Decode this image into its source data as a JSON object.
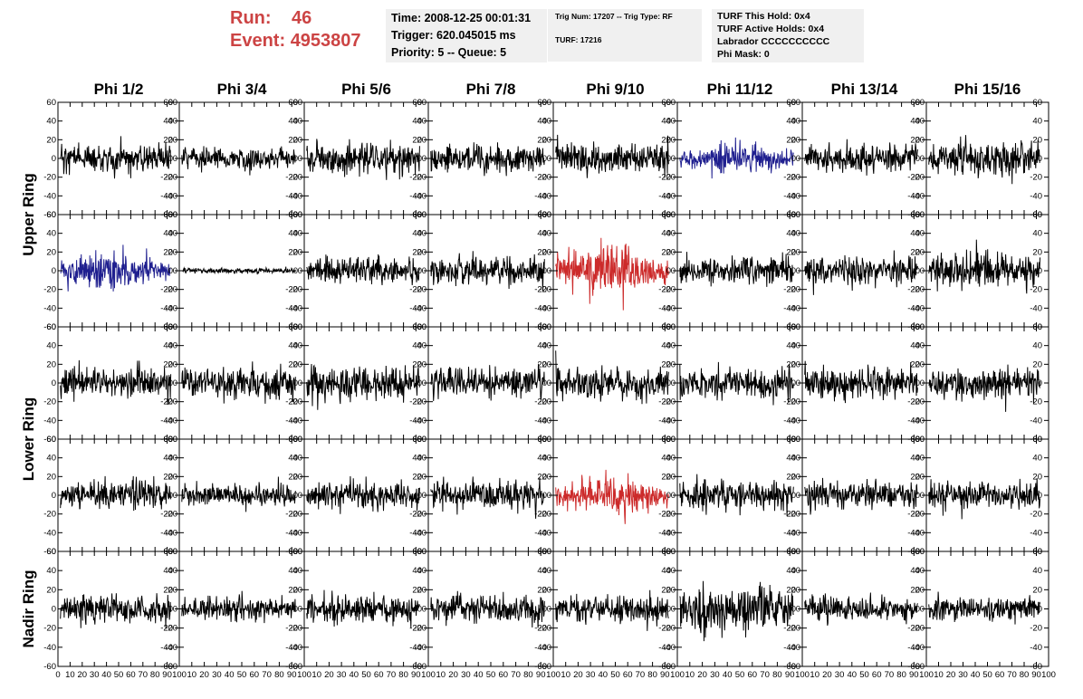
{
  "header": {
    "run_label": "Run:",
    "run_value": "46",
    "event_label": "Event:",
    "event_value": "4953807",
    "box1": {
      "time": "Time: 2008-12-25 00:01:31",
      "trigger": "Trigger: 620.045015 ms",
      "priority": "Priority: 5 -- Queue: 5"
    },
    "box2": {
      "trig": "Trig Num: 17207 -- Trig Type: RF",
      "turf": "TURF: 17216"
    },
    "box3": {
      "this_hold": "TURF This Hold: 0x4",
      "active_holds": "TURF Active Holds: 0x4",
      "labrador": "Labrador CCCCCCCCCC",
      "phi_mask": "Phi Mask: 0"
    }
  },
  "colors": {
    "normal": "#000000",
    "blue": "#1f1f8f",
    "red": "#cc2a2a",
    "title": "#cc4444"
  },
  "chart_data": {
    "type": "line",
    "columns": [
      "Phi 1/2",
      "Phi 3/4",
      "Phi 5/6",
      "Phi 7/8",
      "Phi 9/10",
      "Phi 11/12",
      "Phi 13/14",
      "Phi 15/16"
    ],
    "row_groups": [
      {
        "label": "Upper Ring",
        "rows": [
          0,
          1
        ]
      },
      {
        "label": "Lower Ring",
        "rows": [
          2,
          3
        ]
      },
      {
        "label": "Nadir Ring",
        "rows": [
          4
        ]
      }
    ],
    "ylim": [
      -60,
      60
    ],
    "xlim": [
      0,
      100
    ],
    "yticks": [
      -60,
      -40,
      -20,
      0,
      20,
      40,
      60
    ],
    "xticks": [
      0,
      10,
      20,
      30,
      40,
      50,
      60,
      70,
      80,
      90,
      100
    ],
    "x_tick_labels_first": [
      "0",
      "10",
      "20",
      "30",
      "40",
      "50",
      "60",
      "70",
      "80",
      "90",
      "100"
    ],
    "x_tick_labels_other": [
      "10",
      "20",
      "30",
      "40",
      "50",
      "60",
      "70",
      "80",
      "90",
      "100"
    ],
    "y_tick_labels": [
      "60",
      "40",
      "20",
      "0",
      "-20",
      "-40",
      "-60"
    ],
    "panels": [
      [
        {
          "color": "normal",
          "amp": 13,
          "seed": 11
        },
        {
          "color": "normal",
          "amp": 10,
          "seed": 12
        },
        {
          "color": "normal",
          "amp": 14,
          "seed": 13
        },
        {
          "color": "normal",
          "amp": 13,
          "seed": 14
        },
        {
          "color": "normal",
          "amp": 15,
          "seed": 15
        },
        {
          "color": "blue",
          "amp": 14,
          "seed": 16
        },
        {
          "color": "normal",
          "amp": 14,
          "seed": 17
        },
        {
          "color": "normal",
          "amp": 15,
          "seed": 18
        }
      ],
      [
        {
          "color": "blue",
          "amp": 17,
          "seed": 21
        },
        {
          "color": "normal",
          "amp": 2.5,
          "seed": 22
        },
        {
          "color": "normal",
          "amp": 13,
          "seed": 23
        },
        {
          "color": "normal",
          "amp": 14,
          "seed": 24
        },
        {
          "color": "red",
          "amp": 24,
          "seed": 25
        },
        {
          "color": "normal",
          "amp": 13,
          "seed": 26
        },
        {
          "color": "normal",
          "amp": 14,
          "seed": 27
        },
        {
          "color": "normal",
          "amp": 18,
          "seed": 28
        }
      ],
      [
        {
          "color": "normal",
          "amp": 15,
          "seed": 31
        },
        {
          "color": "normal",
          "amp": 14,
          "seed": 32
        },
        {
          "color": "normal",
          "amp": 17,
          "seed": 33
        },
        {
          "color": "normal",
          "amp": 14,
          "seed": 34
        },
        {
          "color": "normal",
          "amp": 15,
          "seed": 35
        },
        {
          "color": "normal",
          "amp": 15,
          "seed": 36
        },
        {
          "color": "normal",
          "amp": 15,
          "seed": 37
        },
        {
          "color": "normal",
          "amp": 14,
          "seed": 38
        }
      ],
      [
        {
          "color": "normal",
          "amp": 13,
          "seed": 41
        },
        {
          "color": "normal",
          "amp": 11,
          "seed": 42
        },
        {
          "color": "normal",
          "amp": 13,
          "seed": 43
        },
        {
          "color": "normal",
          "amp": 13,
          "seed": 44
        },
        {
          "color": "red",
          "amp": 17,
          "seed": 45
        },
        {
          "color": "normal",
          "amp": 14,
          "seed": 46
        },
        {
          "color": "normal",
          "amp": 13,
          "seed": 47
        },
        {
          "color": "normal",
          "amp": 14,
          "seed": 48
        }
      ],
      [
        {
          "color": "normal",
          "amp": 13,
          "seed": 51
        },
        {
          "color": "normal",
          "amp": 11,
          "seed": 52
        },
        {
          "color": "normal",
          "amp": 13,
          "seed": 53
        },
        {
          "color": "normal",
          "amp": 12,
          "seed": 54
        },
        {
          "color": "normal",
          "amp": 12,
          "seed": 55
        },
        {
          "color": "normal",
          "amp": 20,
          "seed": 56
        },
        {
          "color": "normal",
          "amp": 12,
          "seed": 57
        },
        {
          "color": "normal",
          "amp": 12,
          "seed": 58
        }
      ]
    ]
  }
}
